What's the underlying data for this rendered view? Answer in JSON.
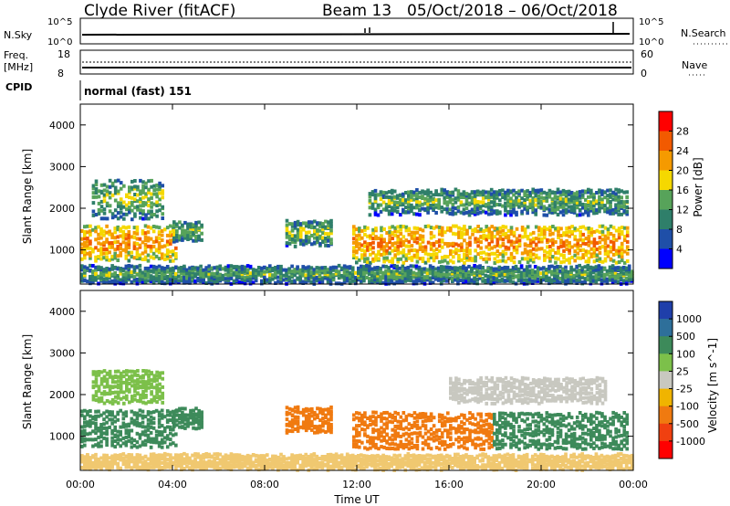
{
  "header": {
    "title": "Clyde River (fitACF)",
    "beam": "Beam 13",
    "date_range": "05/Oct/2018 – 06/Oct/2018"
  },
  "top_panels": {
    "nsky_label": "N.Sky",
    "nsearch_label": "N.Search",
    "nsky_ticks": [
      "10^5",
      "10^0"
    ],
    "nsearch_ticks": [
      "10^5",
      "10^0"
    ],
    "freq_label_line1": "Freq.",
    "freq_label_line2": "[MHz]",
    "freq_ticks": [
      "18",
      "8"
    ],
    "nave_label": "Nave",
    "nave_ticks": [
      "60",
      "0"
    ],
    "cpid_label": "CPID",
    "cpid_value": "normal (fast) 151"
  },
  "chart_data": [
    {
      "type": "heatmap",
      "panel": "power",
      "ylabel": "Slant Range [km]",
      "y_ticks": [
        "1000",
        "2000",
        "3000",
        "4000"
      ],
      "ylim": [
        180,
        4500
      ],
      "colorbar_label": "Power [dB]",
      "colorbar_ticks": [
        "28",
        "24",
        "20",
        "16",
        "12",
        "8",
        "4"
      ],
      "colorbar_colors": [
        "#ff0000",
        "#f25a00",
        "#f59a00",
        "#f5d800",
        "#57a35a",
        "#2f7f6a",
        "#1f4fa8",
        "#0000ff"
      ],
      "bands": [
        {
          "t0": 0.0,
          "t1": 4.1,
          "r0": 750,
          "r1": 1600,
          "value": 18
        },
        {
          "t0": 0.5,
          "t1": 3.6,
          "r0": 1750,
          "r1": 2700,
          "value": 10
        },
        {
          "t0": 4.0,
          "t1": 5.3,
          "r0": 1200,
          "r1": 1650,
          "value": 10
        },
        {
          "t0": 8.9,
          "t1": 10.9,
          "r0": 1100,
          "r1": 1700,
          "value": 10
        },
        {
          "t0": 11.8,
          "t1": 23.7,
          "r0": 700,
          "r1": 1600,
          "value": 18
        },
        {
          "t0": 12.5,
          "t1": 23.7,
          "r0": 1850,
          "r1": 2450,
          "value": 9
        },
        {
          "t0": 0.0,
          "t1": 24.0,
          "r0": 200,
          "r1": 600,
          "value": 8
        }
      ]
    },
    {
      "type": "heatmap",
      "panel": "velocity",
      "ylabel": "Slant Range [km]",
      "y_ticks": [
        "1000",
        "2000",
        "3000",
        "4000"
      ],
      "ylim": [
        180,
        4500
      ],
      "xlabel": "Time UT",
      "x_ticks": [
        "00:00",
        "04:00",
        "08:00",
        "12:00",
        "16:00",
        "20:00",
        "00:00"
      ],
      "x_tick_hours": [
        0,
        4,
        8,
        12,
        16,
        20,
        24
      ],
      "colorbar_label": "Velocity [m s^-1]",
      "colorbar_ticks": [
        "1000",
        "500",
        "100",
        "25",
        "-25",
        "-100",
        "-500",
        "-1000"
      ],
      "colorbar_colors": [
        "#1f3faa",
        "#2e6f9a",
        "#3d8a5a",
        "#7cc04a",
        "#c8c8c0",
        "#f0b400",
        "#f07a10",
        "#f04010",
        "#ff0000"
      ],
      "bands": [
        {
          "t0": 0.0,
          "t1": 4.1,
          "r0": 750,
          "r1": 1650,
          "color": "#3d8a5a"
        },
        {
          "t0": 0.5,
          "t1": 3.6,
          "r0": 1800,
          "r1": 2600,
          "color": "#7cc04a"
        },
        {
          "t0": 4.0,
          "t1": 5.3,
          "r0": 1200,
          "r1": 1650,
          "color": "#3d8a5a"
        },
        {
          "t0": 8.9,
          "t1": 10.9,
          "r0": 1100,
          "r1": 1700,
          "color": "#f07a10"
        },
        {
          "t0": 11.8,
          "t1": 17.9,
          "r0": 700,
          "r1": 1600,
          "color": "#f07a10"
        },
        {
          "t0": 17.9,
          "t1": 23.7,
          "r0": 700,
          "r1": 1600,
          "color": "#3d8a5a"
        },
        {
          "t0": 16.0,
          "t1": 22.8,
          "r0": 1800,
          "r1": 2400,
          "color": "#c8c8c0"
        },
        {
          "t0": 0.0,
          "t1": 24.0,
          "r0": 200,
          "r1": 550,
          "color": "#f0c870"
        }
      ]
    }
  ]
}
